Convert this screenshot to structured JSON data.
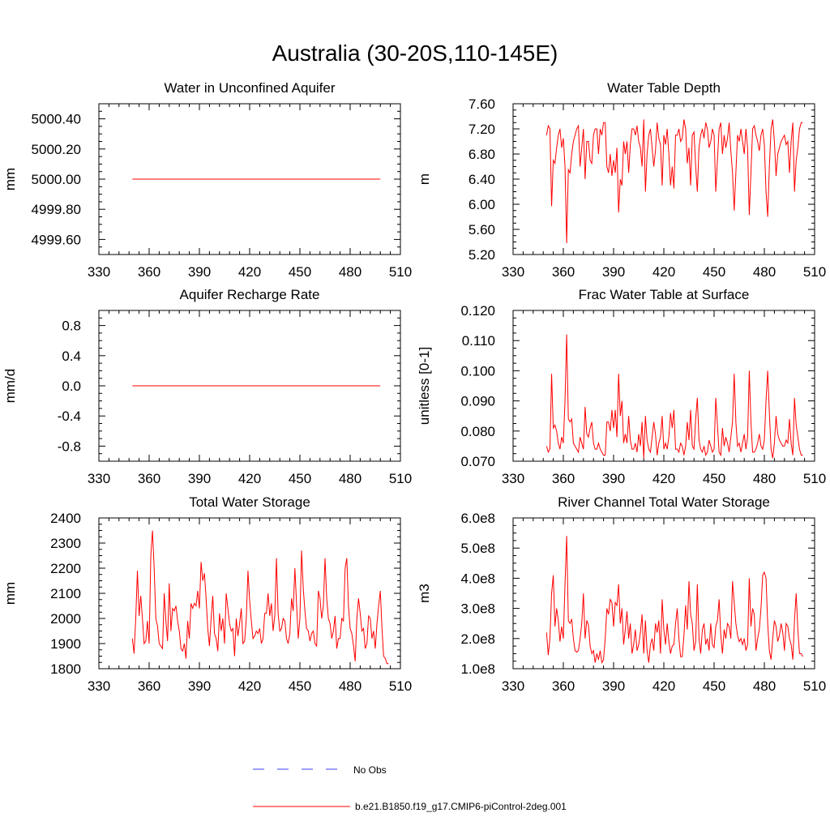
{
  "title": "Australia (30-20S,110-145E)",
  "legend": {
    "obs_label": "No Obs",
    "model_label": "b.e21.B1850.f19_g17.CMIP6-piControl-2deg.001",
    "obs_color": "#3d3df2",
    "model_color": "#ff0000"
  },
  "chart_data": [
    {
      "id": "p1",
      "type": "line",
      "title": "Water in Unconfined Aquifer",
      "ylabel": "mm",
      "xlim": [
        330,
        510
      ],
      "ylim": [
        4999.5,
        5000.5
      ],
      "xticks": [
        330,
        360,
        390,
        420,
        450,
        480,
        510
      ],
      "xtick_labels": [
        "330",
        "360",
        "390",
        "420",
        "450",
        "480",
        "510"
      ],
      "yticks": [
        4999.6,
        4999.8,
        5000.0,
        5000.2,
        5000.4
      ],
      "ytick_labels": [
        "4999.60",
        "4999.80",
        "5000.00",
        "5000.20",
        "5000.40"
      ],
      "series": [
        {
          "name": "b.e21.B1850.f19_g17.CMIP6-piControl-2deg.001",
          "x": [
            350,
            498
          ],
          "values": [
            5000.0,
            5000.0
          ]
        }
      ]
    },
    {
      "id": "p2",
      "type": "line",
      "title": "Water Table Depth",
      "ylabel": "m",
      "xlim": [
        330,
        510
      ],
      "ylim": [
        5.2,
        7.6
      ],
      "xticks": [
        330,
        360,
        390,
        420,
        450,
        480,
        510
      ],
      "xtick_labels": [
        "330",
        "360",
        "390",
        "420",
        "450",
        "480",
        "510"
      ],
      "yticks": [
        5.2,
        5.6,
        6.0,
        6.4,
        6.8,
        7.2,
        7.6
      ],
      "ytick_labels": [
        "5.20",
        "5.60",
        "6.00",
        "6.40",
        "6.80",
        "7.20",
        "7.60"
      ],
      "series": [
        {
          "name": "b.e21.B1850.f19_g17.CMIP6-piControl-2deg.001",
          "x0": 350,
          "dx": 1,
          "values": [
            7.1,
            7.25,
            7.2,
            5.97,
            6.7,
            6.65,
            6.9,
            7.1,
            7.2,
            6.9,
            7.05,
            6.6,
            5.38,
            6.55,
            6.5,
            6.8,
            7.0,
            7.1,
            7.2,
            7.25,
            6.6,
            6.9,
            7.2,
            6.4,
            7.0,
            7.0,
            6.7,
            6.65,
            7.1,
            7.2,
            7.2,
            6.8,
            7.2,
            7.1,
            7.3,
            7.3,
            6.6,
            6.5,
            6.8,
            6.45,
            6.7,
            6.5,
            6.9,
            5.87,
            6.4,
            6.3,
            7.0,
            6.8,
            7.0,
            6.5,
            6.95,
            7.2,
            7.2,
            7.1,
            7.25,
            7.0,
            6.9,
            6.6,
            7.35,
            6.2,
            6.8,
            7.1,
            7.2,
            6.9,
            6.6,
            6.85,
            7.3,
            7.05,
            6.95,
            6.3,
            7.1,
            6.95,
            7.2,
            6.8,
            6.3,
            6.6,
            6.25,
            7.1,
            7.1,
            7.2,
            7.0,
            7.05,
            7.35,
            7.2,
            6.65,
            6.9,
            6.3,
            7.1,
            7.15,
            6.6,
            6.2,
            6.9,
            7.1,
            7.2,
            7.05,
            7.3,
            7.2,
            6.9,
            7.0,
            7.2,
            7.1,
            6.2,
            6.7,
            7.2,
            7.3,
            6.8,
            7.1,
            6.9,
            7.05,
            7.3,
            6.85,
            6.5,
            5.9,
            6.5,
            7.1,
            7.0,
            7.2,
            7.0,
            6.8,
            7.2,
            6.9,
            5.83,
            6.5,
            7.2,
            7.25,
            7.1,
            7.0,
            6.85,
            7.1,
            7.2,
            6.95,
            6.2,
            5.8,
            6.6,
            7.2,
            7.35,
            7.0,
            6.45,
            6.8,
            6.9,
            7.0,
            7.05,
            7.1,
            6.95,
            7.0,
            6.5,
            7.0,
            7.3,
            6.2,
            6.7,
            6.9,
            7.2,
            7.3,
            7.3
          ]
        }
      ]
    },
    {
      "id": "p3",
      "type": "line",
      "title": "Aquifer Recharge Rate",
      "ylabel": "mm/d",
      "xlim": [
        330,
        510
      ],
      "ylim": [
        -1.0,
        1.0
      ],
      "xticks": [
        330,
        360,
        390,
        420,
        450,
        480,
        510
      ],
      "xtick_labels": [
        "330",
        "360",
        "390",
        "420",
        "450",
        "480",
        "510"
      ],
      "yticks": [
        -0.8,
        -0.4,
        0.0,
        0.4,
        0.8
      ],
      "ytick_labels": [
        "-0.8",
        "-0.4",
        "0.0",
        "0.4",
        "0.8"
      ],
      "series": [
        {
          "name": "b.e21.B1850.f19_g17.CMIP6-piControl-2deg.001",
          "x": [
            350,
            498
          ],
          "values": [
            0.0,
            0.0
          ]
        }
      ]
    },
    {
      "id": "p4",
      "type": "line",
      "title": "Frac Water Table at Surface",
      "ylabel": "unitless [0-1]",
      "xlim": [
        330,
        510
      ],
      "ylim": [
        0.07,
        0.12
      ],
      "xticks": [
        330,
        360,
        390,
        420,
        450,
        480,
        510
      ],
      "xtick_labels": [
        "330",
        "360",
        "390",
        "420",
        "450",
        "480",
        "510"
      ],
      "yticks": [
        0.07,
        0.08,
        0.09,
        0.1,
        0.11,
        0.12
      ],
      "ytick_labels": [
        "0.070",
        "0.080",
        "0.090",
        "0.100",
        "0.110",
        "0.120"
      ],
      "series": [
        {
          "name": "b.e21.B1850.f19_g17.CMIP6-piControl-2deg.001",
          "x0": 350,
          "dx": 1,
          "values": [
            0.075,
            0.073,
            0.074,
            0.099,
            0.081,
            0.082,
            0.08,
            0.076,
            0.074,
            0.078,
            0.076,
            0.09,
            0.112,
            0.084,
            0.083,
            0.084,
            0.076,
            0.075,
            0.074,
            0.073,
            0.078,
            0.076,
            0.074,
            0.088,
            0.079,
            0.078,
            0.081,
            0.083,
            0.076,
            0.074,
            0.074,
            0.076,
            0.074,
            0.073,
            0.072,
            0.072,
            0.083,
            0.083,
            0.08,
            0.087,
            0.081,
            0.087,
            0.078,
            0.099,
            0.085,
            0.09,
            0.076,
            0.079,
            0.076,
            0.085,
            0.077,
            0.074,
            0.074,
            0.076,
            0.073,
            0.079,
            0.075,
            0.083,
            0.071,
            0.085,
            0.077,
            0.074,
            0.073,
            0.078,
            0.083,
            0.079,
            0.072,
            0.076,
            0.078,
            0.085,
            0.074,
            0.076,
            0.074,
            0.078,
            0.086,
            0.081,
            0.087,
            0.074,
            0.074,
            0.073,
            0.076,
            0.075,
            0.072,
            0.075,
            0.083,
            0.077,
            0.087,
            0.075,
            0.074,
            0.084,
            0.091,
            0.077,
            0.074,
            0.073,
            0.075,
            0.072,
            0.073,
            0.077,
            0.075,
            0.073,
            0.074,
            0.091,
            0.082,
            0.073,
            0.072,
            0.081,
            0.075,
            0.078,
            0.076,
            0.073,
            0.078,
            0.083,
            0.099,
            0.083,
            0.075,
            0.076,
            0.073,
            0.076,
            0.079,
            0.074,
            0.078,
            0.1,
            0.083,
            0.073,
            0.073,
            0.074,
            0.076,
            0.079,
            0.075,
            0.074,
            0.077,
            0.09,
            0.1,
            0.086,
            0.074,
            0.071,
            0.076,
            0.085,
            0.079,
            0.077,
            0.076,
            0.075,
            0.075,
            0.077,
            0.076,
            0.084,
            0.076,
            0.072,
            0.091,
            0.082,
            0.078,
            0.074,
            0.072,
            0.072
          ]
        }
      ]
    },
    {
      "id": "p5",
      "type": "line",
      "title": "Total Water Storage",
      "ylabel": "mm",
      "xlim": [
        330,
        510
      ],
      "ylim": [
        1800,
        2400
      ],
      "xticks": [
        330,
        360,
        390,
        420,
        450,
        480,
        510
      ],
      "xtick_labels": [
        "330",
        "360",
        "390",
        "420",
        "450",
        "480",
        "510"
      ],
      "yticks": [
        1800,
        1900,
        2000,
        2100,
        2200,
        2300,
        2400
      ],
      "ytick_labels": [
        "1800",
        "1900",
        "2000",
        "2100",
        "2200",
        "2300",
        "2400"
      ],
      "series": [
        {
          "name": "b.e21.B1850.f19_g17.CMIP6-piControl-2deg.001",
          "x0": 350,
          "dx": 1,
          "values": [
            1920,
            1860,
            2000,
            2190,
            2010,
            2090,
            2000,
            1900,
            1910,
            1990,
            1900,
            2250,
            2350,
            2200,
            2000,
            1970,
            1900,
            1890,
            1880,
            2100,
            1990,
            1910,
            2140,
            1950,
            2040,
            2030,
            2050,
            1990,
            1950,
            1880,
            1870,
            1900,
            1840,
            1990,
            1920,
            2060,
            2040,
            2060,
            2050,
            2110,
            2040,
            2225,
            2150,
            2180,
            2080,
            1960,
            1890,
            2000,
            2090,
            1940,
            1920,
            1870,
            2020,
            1950,
            2000,
            1900,
            2100,
            2040,
            1980,
            1950,
            1960,
            1850,
            2000,
            1930,
            1980,
            2040,
            1900,
            1910,
            2000,
            2190,
            2070,
            1990,
            1920,
            1930,
            1950,
            1940,
            1960,
            1900,
            1920,
            2020,
            2020,
            2100,
            2010,
            2060,
            1950,
            2010,
            2240,
            2020,
            1950,
            1960,
            2000,
            1990,
            1920,
            1900,
            1940,
            2080,
            2030,
            2200,
            2060,
            1920,
            2000,
            2270,
            2120,
            2030,
            1960,
            1950,
            1910,
            1940,
            1950,
            1900,
            1890,
            2110,
            2080,
            2000,
            2050,
            2240,
            2080,
            2000,
            1980,
            1920,
            1950,
            2010,
            1880,
            1920,
            1920,
            2000,
            1990,
            2200,
            2240,
            2050,
            1960,
            1940,
            1890,
            1830,
            2000,
            2080,
            2020,
            1950,
            1960,
            1880,
            1900,
            2010,
            2000,
            1920,
            1950,
            1880,
            1980,
            2050,
            2110,
            1960,
            1850,
            1840,
            1820,
            1820
          ]
        }
      ]
    },
    {
      "id": "p6",
      "type": "line",
      "title": "River Channel Total Water Storage",
      "ylabel": "m3",
      "xlim": [
        330,
        510
      ],
      "ylim": [
        100000000,
        600000000
      ],
      "xticks": [
        330,
        360,
        390,
        420,
        450,
        480,
        510
      ],
      "xtick_labels": [
        "330",
        "360",
        "390",
        "420",
        "450",
        "480",
        "510"
      ],
      "yticks": [
        100000000,
        200000000,
        300000000,
        400000000,
        500000000,
        600000000
      ],
      "ytick_labels": [
        "1.0e8",
        "2.0e8",
        "3.0e8",
        "4.0e8",
        "5.0e8",
        "6.0e8"
      ],
      "series": [
        {
          "name": "b.e21.B1850.f19_g17.CMIP6-piControl-2deg.001",
          "x0": 350,
          "dx": 1,
          "values": [
            220000000,
            145000000,
            200000000,
            350000000,
            410000000,
            240000000,
            300000000,
            260000000,
            190000000,
            240000000,
            200000000,
            380000000,
            540000000,
            260000000,
            250000000,
            265000000,
            200000000,
            160000000,
            155000000,
            160000000,
            200000000,
            250000000,
            350000000,
            200000000,
            260000000,
            245000000,
            175000000,
            150000000,
            160000000,
            120000000,
            150000000,
            130000000,
            160000000,
            120000000,
            130000000,
            200000000,
            300000000,
            280000000,
            330000000,
            320000000,
            240000000,
            320000000,
            310000000,
            380000000,
            250000000,
            300000000,
            180000000,
            230000000,
            290000000,
            200000000,
            250000000,
            150000000,
            180000000,
            230000000,
            160000000,
            180000000,
            220000000,
            280000000,
            150000000,
            260000000,
            160000000,
            120000000,
            180000000,
            200000000,
            160000000,
            250000000,
            220000000,
            260000000,
            150000000,
            330000000,
            230000000,
            180000000,
            250000000,
            190000000,
            150000000,
            175000000,
            180000000,
            250000000,
            300000000,
            200000000,
            140000000,
            140000000,
            210000000,
            310000000,
            230000000,
            390000000,
            280000000,
            250000000,
            160000000,
            190000000,
            380000000,
            200000000,
            150000000,
            230000000,
            250000000,
            180000000,
            200000000,
            160000000,
            250000000,
            180000000,
            170000000,
            240000000,
            260000000,
            330000000,
            210000000,
            150000000,
            230000000,
            200000000,
            250000000,
            240000000,
            200000000,
            390000000,
            320000000,
            250000000,
            210000000,
            190000000,
            200000000,
            180000000,
            200000000,
            160000000,
            180000000,
            400000000,
            240000000,
            300000000,
            280000000,
            160000000,
            200000000,
            230000000,
            300000000,
            410000000,
            420000000,
            400000000,
            250000000,
            160000000,
            130000000,
            200000000,
            260000000,
            240000000,
            190000000,
            210000000,
            250000000,
            220000000,
            160000000,
            250000000,
            240000000,
            200000000,
            180000000,
            130000000,
            260000000,
            350000000,
            230000000,
            150000000,
            150000000,
            140000000
          ]
        }
      ]
    }
  ]
}
